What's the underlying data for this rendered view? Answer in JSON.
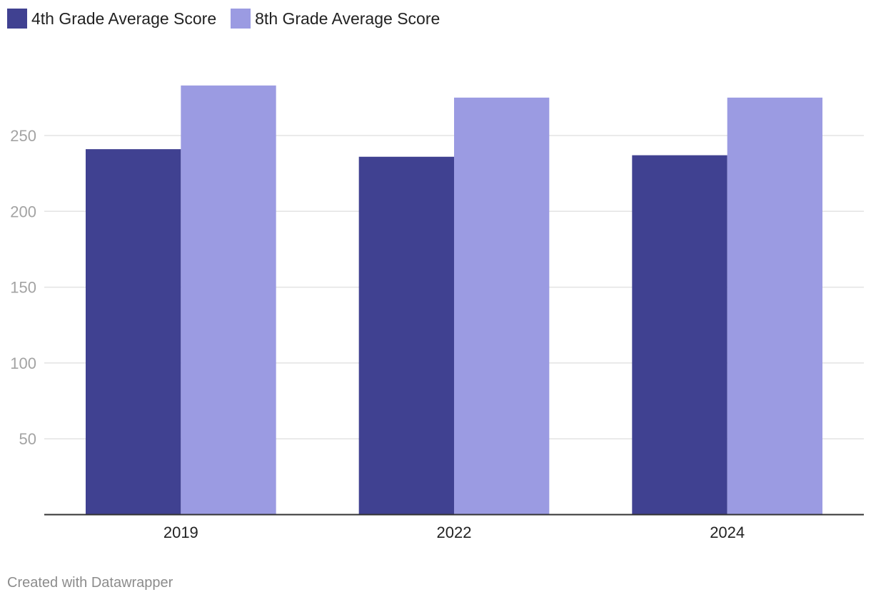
{
  "chart_data": {
    "type": "bar",
    "categories": [
      "2019",
      "2022",
      "2024"
    ],
    "series": [
      {
        "name": "4th Grade Average Score",
        "values": [
          241,
          236,
          237
        ],
        "color": "#404191"
      },
      {
        "name": "8th Grade Average Score",
        "values": [
          283,
          275,
          275
        ],
        "color": "#9b9be2"
      }
    ],
    "ylim": [
      0,
      300
    ],
    "yticks": [
      50,
      100,
      150,
      200,
      250
    ],
    "grid": true,
    "legend_position": "top-left",
    "title": "",
    "xlabel": "",
    "ylabel": ""
  },
  "footer": {
    "credit": "Created with Datawrapper"
  }
}
